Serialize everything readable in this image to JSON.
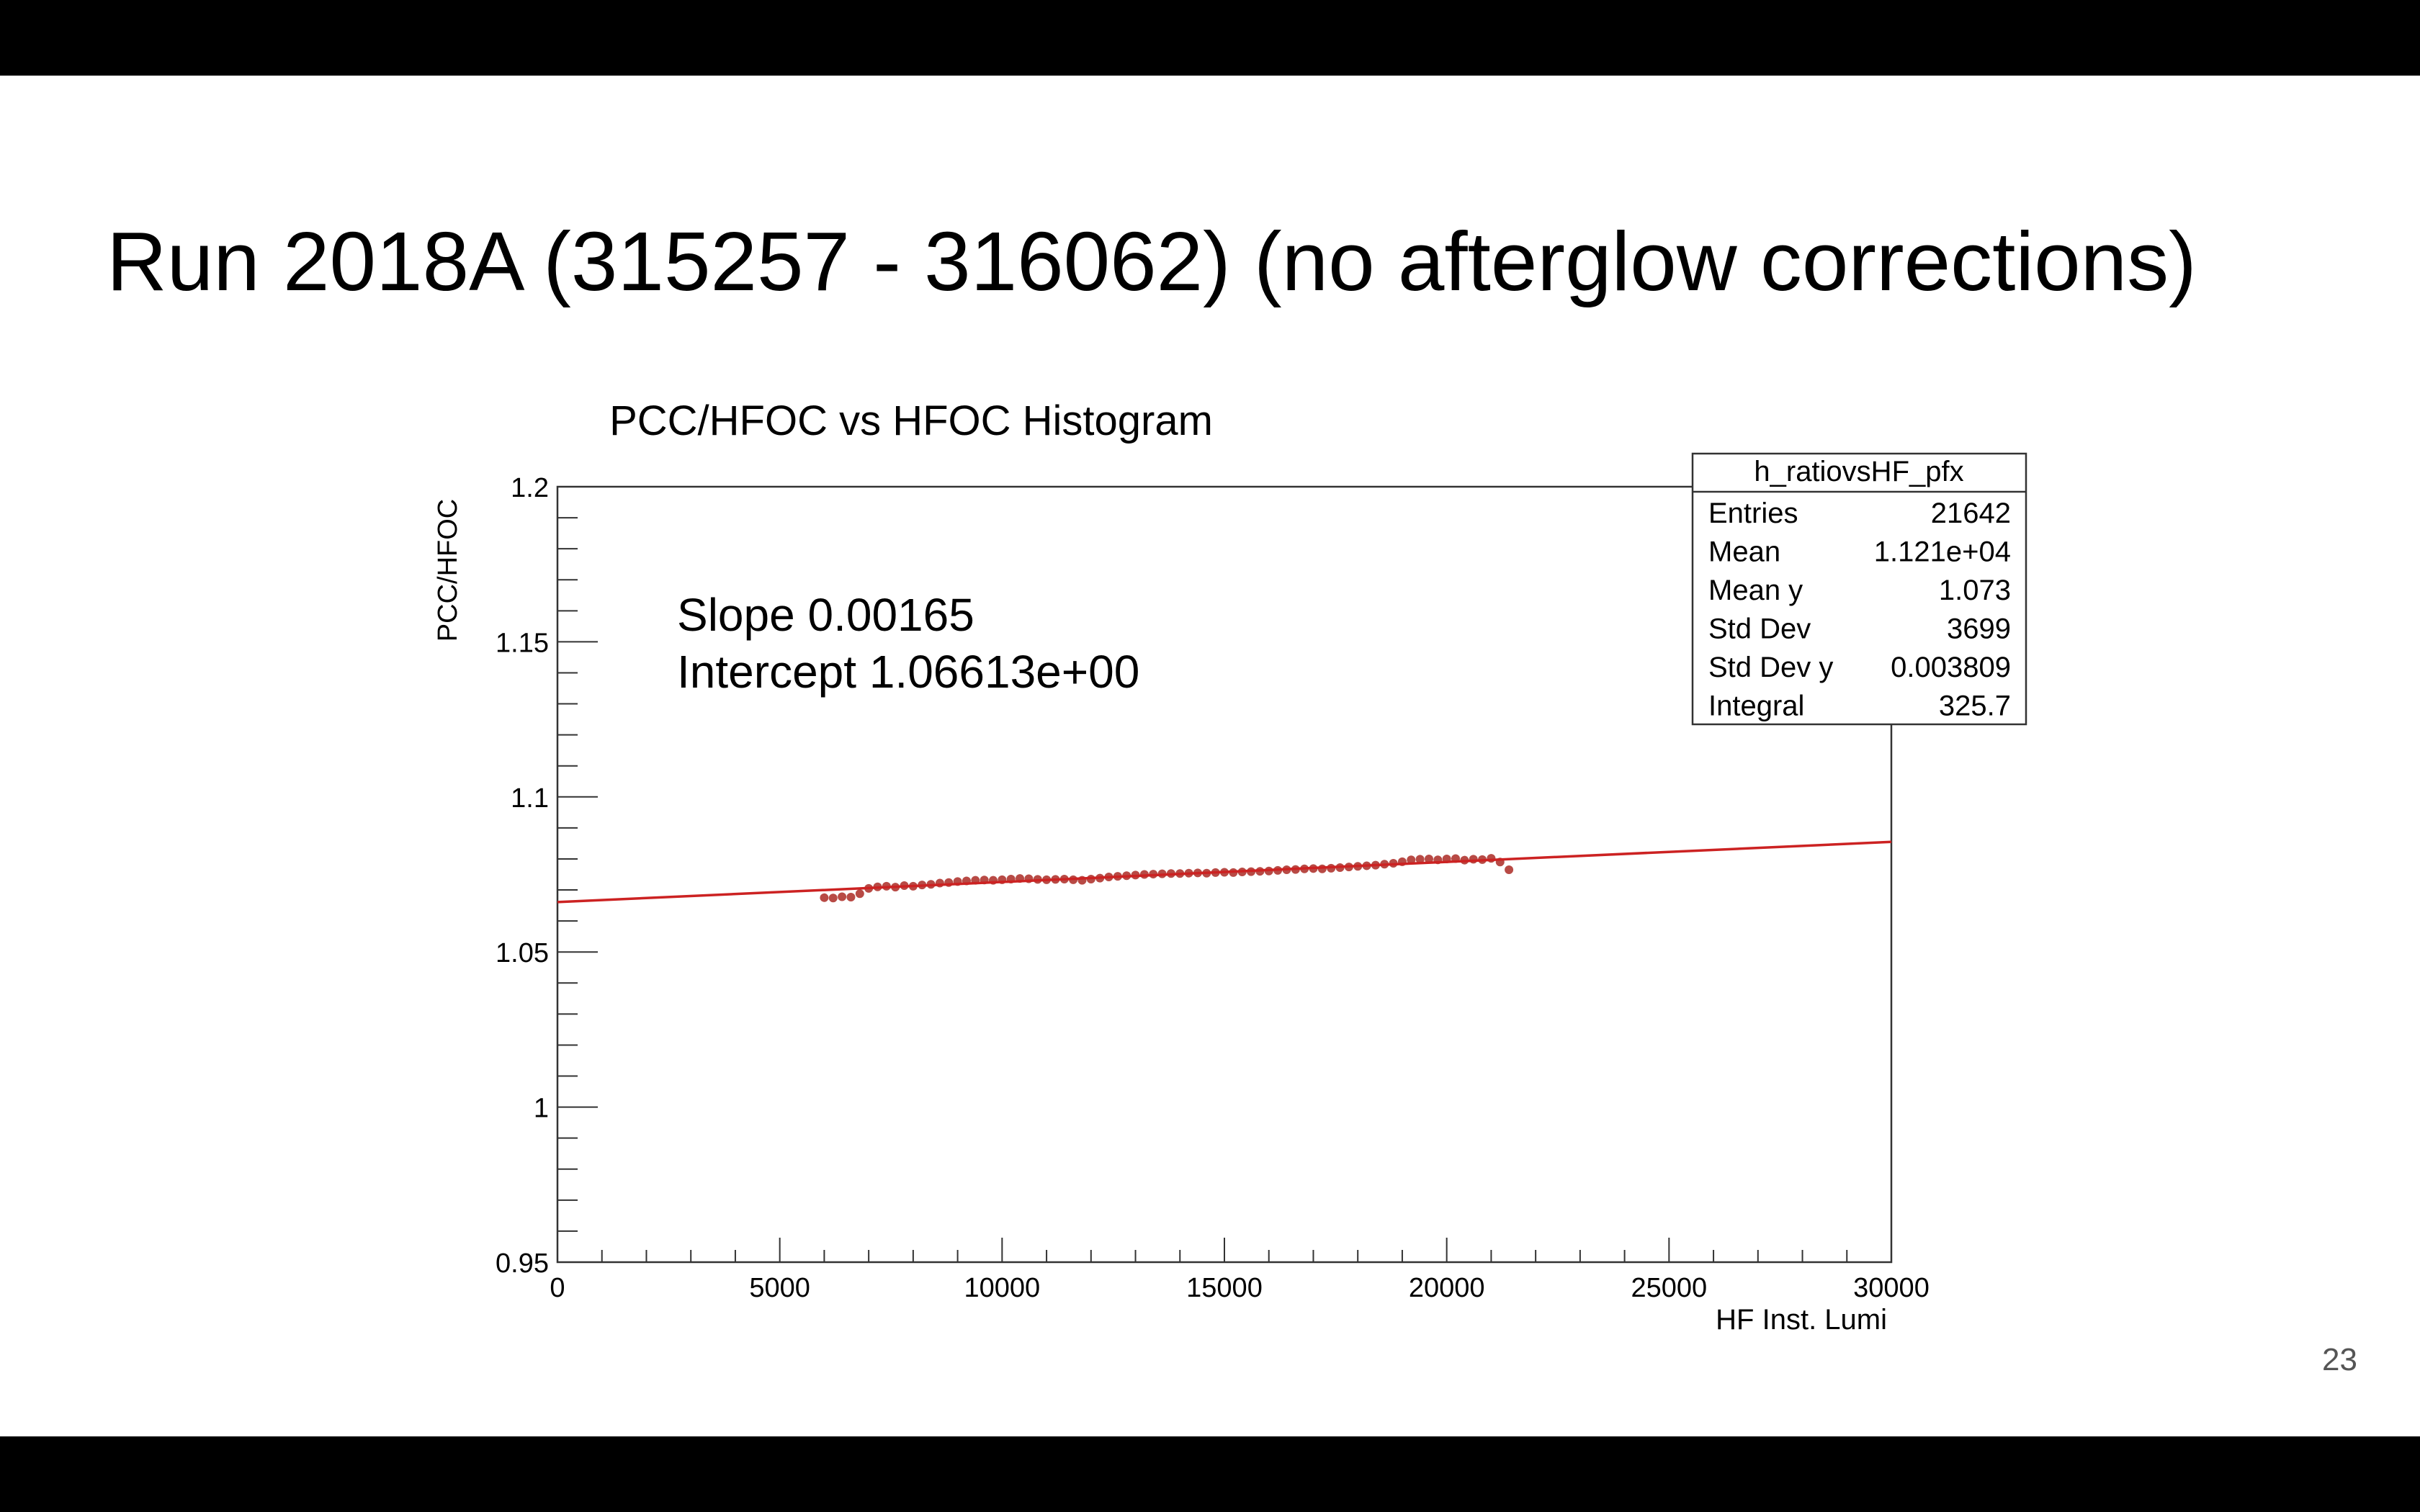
{
  "slide": {
    "title": "Run 2018A (315257 - 316062) (no afterglow corrections)",
    "page_number": "23"
  },
  "chart_data": {
    "type": "scatter",
    "title": "PCC/HFOC vs HFOC Histogram",
    "xlabel": "HF Inst. Lumi",
    "ylabel": "PCC/HFOC",
    "xlim": [
      0,
      30000
    ],
    "ylim": [
      0.95,
      1.2
    ],
    "x_ticks": [
      0,
      5000,
      10000,
      15000,
      20000,
      25000,
      30000
    ],
    "x_tick_labels": [
      "0",
      "5000",
      "10000",
      "15000",
      "20000",
      "25000",
      "30000"
    ],
    "y_ticks": [
      0.95,
      1.0,
      1.05,
      1.1,
      1.15,
      1.2
    ],
    "y_tick_labels": [
      "0.95",
      "1",
      "1.05",
      "1.1",
      "1.15",
      "1.2"
    ],
    "grid": false,
    "annotations": [
      "Slope 0.00165",
      "Intercept 1.06613e+00"
    ],
    "fit_line": {
      "x": [
        0,
        30000
      ],
      "y": [
        1.0661,
        1.0855
      ]
    },
    "marker_color": "#b84a45",
    "fit_color": "#cc2222",
    "series": [
      {
        "x": [
          6000,
          6200,
          6400,
          6600,
          6800,
          7000,
          7200,
          7400,
          7600,
          7800,
          8000,
          8200,
          8400,
          8600,
          8800,
          9000,
          9200,
          9400,
          9600,
          9800,
          10000,
          10200,
          10400,
          10600,
          10800,
          11000,
          11200,
          11400,
          11600,
          11800,
          12000,
          12200,
          12400,
          12600,
          12800,
          13000,
          13200,
          13400,
          13600,
          13800,
          14000,
          14200,
          14400,
          14600,
          14800,
          15000,
          15200,
          15400,
          15600,
          15800,
          16000,
          16200,
          16400,
          16600,
          16800,
          17000,
          17200,
          17400,
          17600,
          17800,
          18000,
          18200,
          18400,
          18600,
          18800,
          19000,
          19200,
          19400,
          19600,
          19800,
          20000,
          20200,
          20400,
          20600,
          20800,
          21000,
          21200,
          21400
        ],
        "y": [
          1.0675,
          1.0674,
          1.0678,
          1.0677,
          1.0688,
          1.0705,
          1.071,
          1.0712,
          1.0709,
          1.0714,
          1.0712,
          1.0716,
          1.0718,
          1.0722,
          1.0724,
          1.0727,
          1.0729,
          1.0731,
          1.0732,
          1.0731,
          1.0733,
          1.0735,
          1.0737,
          1.0736,
          1.0734,
          1.0733,
          1.0734,
          1.0735,
          1.0733,
          1.0731,
          1.0735,
          1.0738,
          1.0742,
          1.0744,
          1.0746,
          1.0748,
          1.075,
          1.0751,
          1.0752,
          1.0753,
          1.0753,
          1.0754,
          1.0755,
          1.0754,
          1.0756,
          1.0757,
          1.0756,
          1.0758,
          1.0759,
          1.076,
          1.0761,
          1.0763,
          1.0765,
          1.0766,
          1.0768,
          1.0769,
          1.0768,
          1.077,
          1.0772,
          1.0774,
          1.0776,
          1.0778,
          1.078,
          1.0783,
          1.0786,
          1.0791,
          1.0797,
          1.0799,
          1.08,
          1.0797,
          1.08,
          1.0801,
          1.0796,
          1.0799,
          1.0798,
          1.0802,
          1.079,
          1.0765
        ]
      }
    ],
    "stats_box": {
      "title": "h_ratiovsHF_pfx",
      "rows": [
        {
          "label": "Entries",
          "value": "21642"
        },
        {
          "label": "Mean",
          "value": "1.121e+04"
        },
        {
          "label": "Mean y",
          "value": "1.073"
        },
        {
          "label": "Std Dev",
          "value": "3699"
        },
        {
          "label": "Std Dev y",
          "value": "0.003809"
        },
        {
          "label": "Integral",
          "value": "325.7"
        }
      ]
    }
  }
}
